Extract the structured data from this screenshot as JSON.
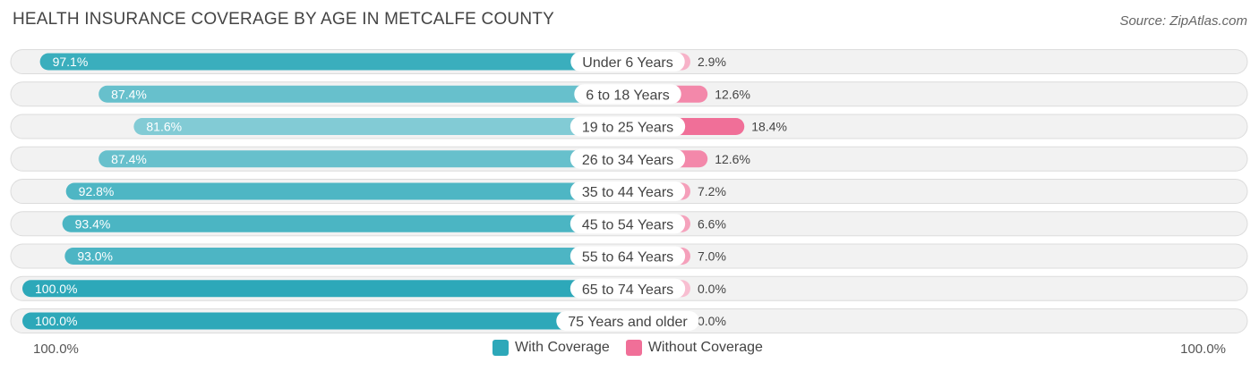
{
  "title": "HEALTH INSURANCE COVERAGE BY AGE IN METCALFE COUNTY",
  "source": "Source: ZipAtlas.com",
  "axis": {
    "left_label": "100.0%",
    "right_label": "100.0%"
  },
  "legend": [
    {
      "label": "With Coverage",
      "color": "#2da8b9"
    },
    {
      "label": "Without Coverage",
      "color": "#f06f98"
    }
  ],
  "chart_data": {
    "type": "bar",
    "orientation": "horizontal-diverging",
    "title": "HEALTH INSURANCE COVERAGE BY AGE IN METCALFE COUNTY",
    "categories": [
      "Under 6 Years",
      "6 to 18 Years",
      "19 to 25 Years",
      "26 to 34 Years",
      "35 to 44 Years",
      "45 to 54 Years",
      "55 to 64 Years",
      "65 to 74 Years",
      "75 Years and older"
    ],
    "series": [
      {
        "name": "With Coverage",
        "color": "#2da8b9",
        "values": [
          97.1,
          87.4,
          81.6,
          87.4,
          92.8,
          93.4,
          93.0,
          100.0,
          100.0
        ],
        "labels": [
          "97.1%",
          "87.4%",
          "81.6%",
          "87.4%",
          "92.8%",
          "93.4%",
          "93.0%",
          "100.0%",
          "100.0%"
        ]
      },
      {
        "name": "Without Coverage",
        "color": "#f06f98",
        "values": [
          2.9,
          12.6,
          18.4,
          12.6,
          7.2,
          6.6,
          7.0,
          0.0,
          0.0
        ],
        "labels": [
          "2.9%",
          "12.6%",
          "18.4%",
          "12.6%",
          "7.2%",
          "6.6%",
          "7.0%",
          "0.0%",
          "0.0%"
        ]
      }
    ],
    "xlim": [
      0,
      100
    ],
    "legend_position": "bottom-center"
  }
}
